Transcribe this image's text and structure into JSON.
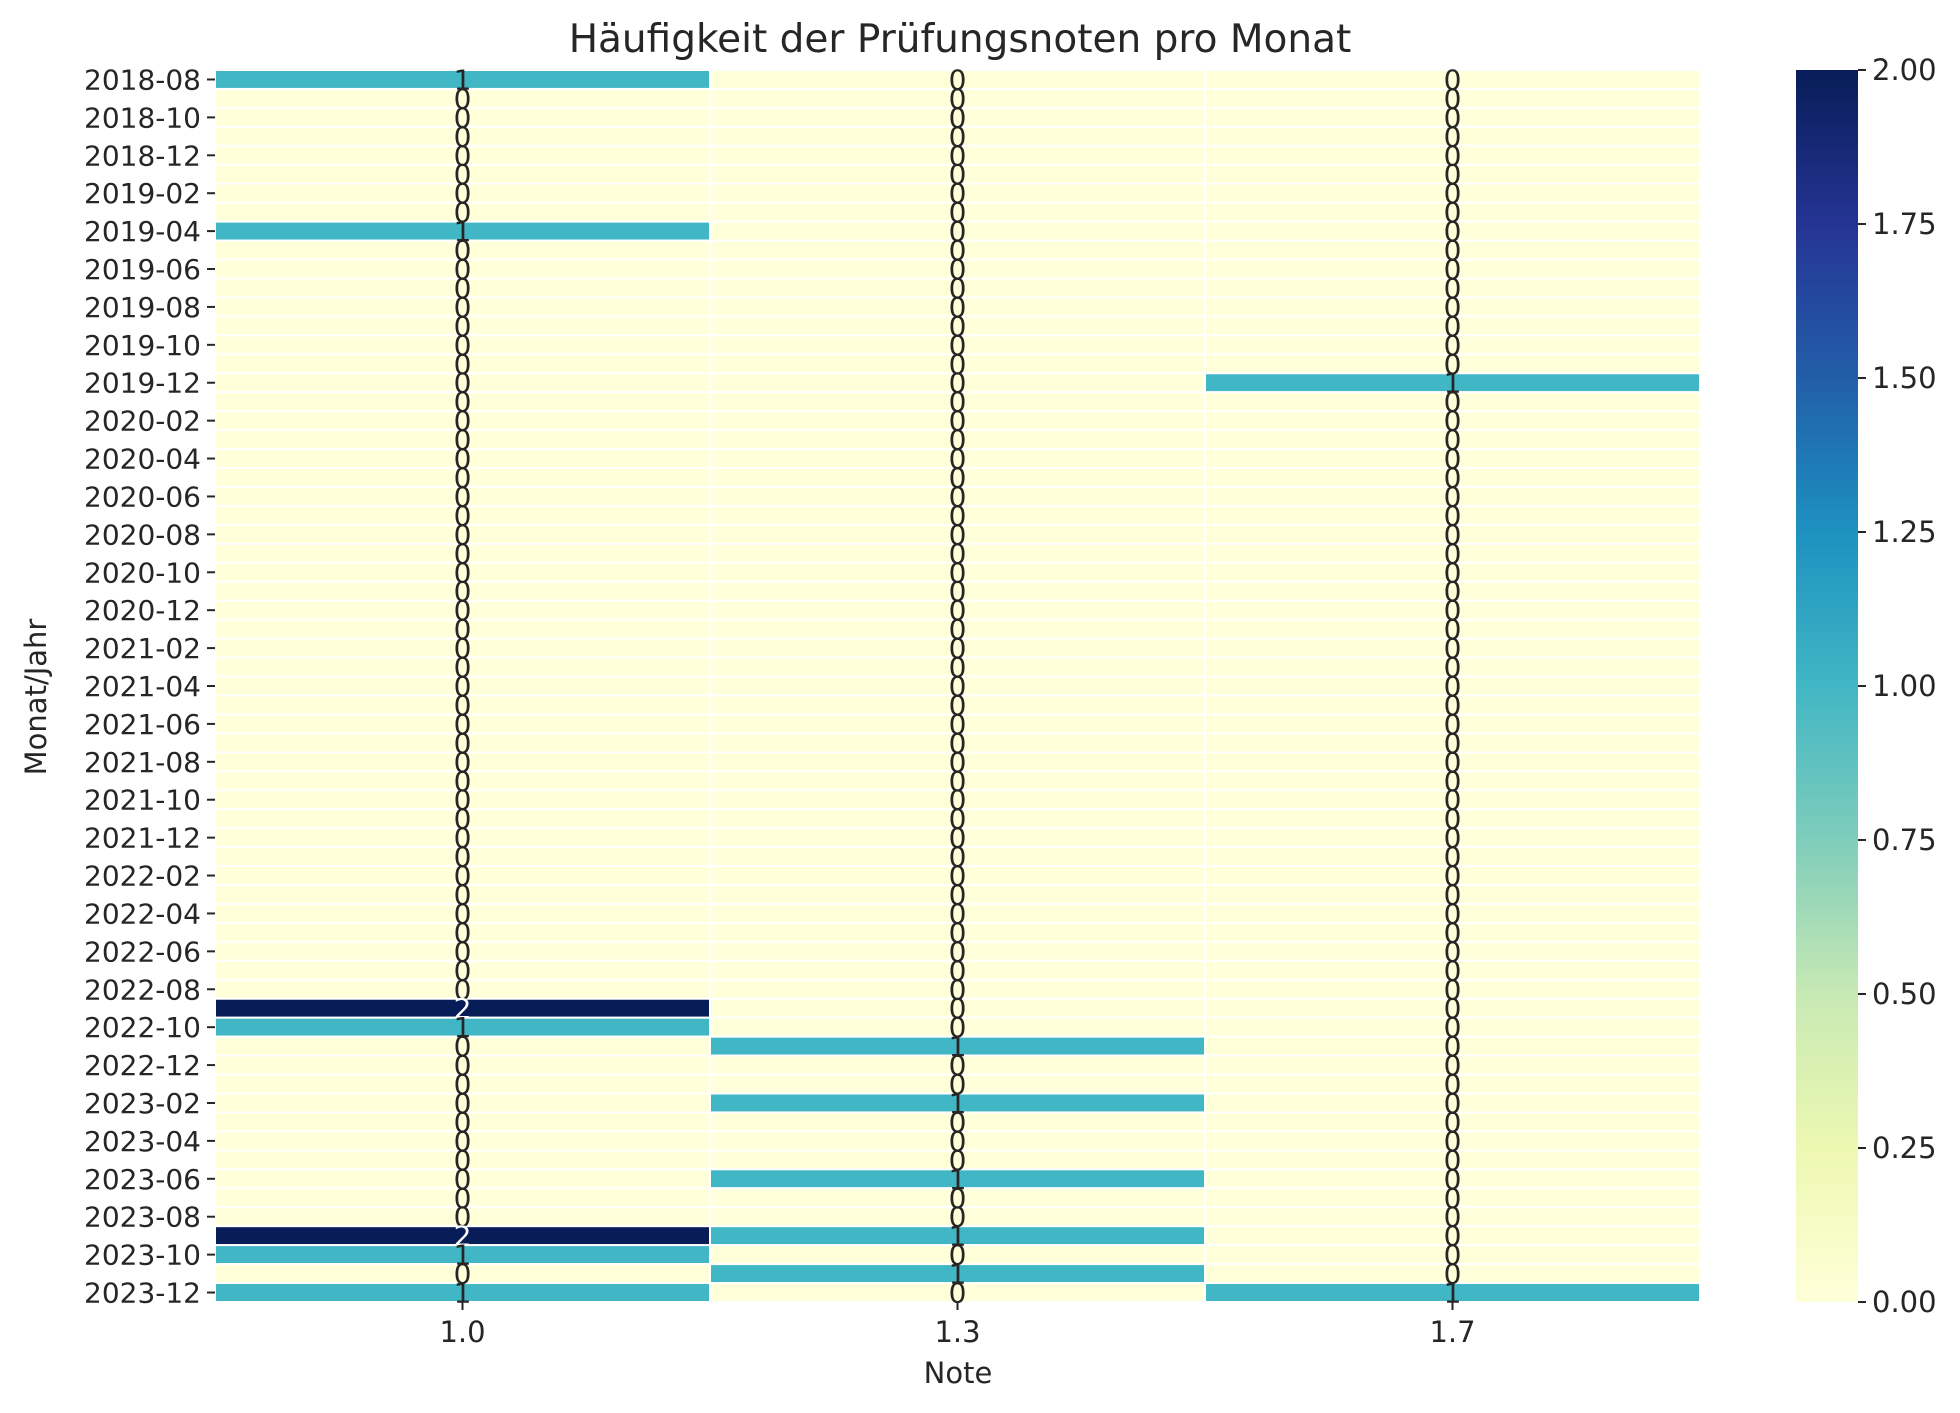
{
  "chart_data": {
    "type": "heatmap",
    "title": "Häufigkeit der Prüfungsnoten pro Monat",
    "xlabel": "Note",
    "ylabel": "Monat/Jahr",
    "x_categories": [
      "1.0",
      "1.3",
      "1.7"
    ],
    "y_categories": [
      "2018-08",
      "2018-09",
      "2018-10",
      "2018-11",
      "2018-12",
      "2019-01",
      "2019-02",
      "2019-03",
      "2019-04",
      "2019-05",
      "2019-06",
      "2019-07",
      "2019-08",
      "2019-09",
      "2019-10",
      "2019-11",
      "2019-12",
      "2020-01",
      "2020-02",
      "2020-03",
      "2020-04",
      "2020-05",
      "2020-06",
      "2020-07",
      "2020-08",
      "2020-09",
      "2020-10",
      "2020-11",
      "2020-12",
      "2021-01",
      "2021-02",
      "2021-03",
      "2021-04",
      "2021-05",
      "2021-06",
      "2021-07",
      "2021-08",
      "2021-09",
      "2021-10",
      "2021-11",
      "2021-12",
      "2022-01",
      "2022-02",
      "2022-03",
      "2022-04",
      "2022-05",
      "2022-06",
      "2022-07",
      "2022-08",
      "2022-09",
      "2022-10",
      "2022-11",
      "2022-12",
      "2023-01",
      "2023-02",
      "2023-03",
      "2023-04",
      "2023-05",
      "2023-06",
      "2023-07",
      "2023-08",
      "2023-09",
      "2023-10",
      "2023-11",
      "2023-12"
    ],
    "y_tick_labels": [
      "2018-08",
      "2018-10",
      "2018-12",
      "2019-02",
      "2019-04",
      "2019-06",
      "2019-08",
      "2019-10",
      "2019-12",
      "2020-02",
      "2020-04",
      "2020-06",
      "2020-08",
      "2020-10",
      "2020-12",
      "2021-02",
      "2021-04",
      "2021-06",
      "2021-08",
      "2021-10",
      "2021-12",
      "2022-02",
      "2022-04",
      "2022-06",
      "2022-08",
      "2022-10",
      "2022-12",
      "2023-02",
      "2023-04",
      "2023-06",
      "2023-08",
      "2023-10",
      "2023-12"
    ],
    "values": [
      [
        1,
        0,
        0
      ],
      [
        0,
        0,
        0
      ],
      [
        0,
        0,
        0
      ],
      [
        0,
        0,
        0
      ],
      [
        0,
        0,
        0
      ],
      [
        0,
        0,
        0
      ],
      [
        0,
        0,
        0
      ],
      [
        0,
        0,
        0
      ],
      [
        1,
        0,
        0
      ],
      [
        0,
        0,
        0
      ],
      [
        0,
        0,
        0
      ],
      [
        0,
        0,
        0
      ],
      [
        0,
        0,
        0
      ],
      [
        0,
        0,
        0
      ],
      [
        0,
        0,
        0
      ],
      [
        0,
        0,
        0
      ],
      [
        0,
        0,
        1
      ],
      [
        0,
        0,
        0
      ],
      [
        0,
        0,
        0
      ],
      [
        0,
        0,
        0
      ],
      [
        0,
        0,
        0
      ],
      [
        0,
        0,
        0
      ],
      [
        0,
        0,
        0
      ],
      [
        0,
        0,
        0
      ],
      [
        0,
        0,
        0
      ],
      [
        0,
        0,
        0
      ],
      [
        0,
        0,
        0
      ],
      [
        0,
        0,
        0
      ],
      [
        0,
        0,
        0
      ],
      [
        0,
        0,
        0
      ],
      [
        0,
        0,
        0
      ],
      [
        0,
        0,
        0
      ],
      [
        0,
        0,
        0
      ],
      [
        0,
        0,
        0
      ],
      [
        0,
        0,
        0
      ],
      [
        0,
        0,
        0
      ],
      [
        0,
        0,
        0
      ],
      [
        0,
        0,
        0
      ],
      [
        0,
        0,
        0
      ],
      [
        0,
        0,
        0
      ],
      [
        0,
        0,
        0
      ],
      [
        0,
        0,
        0
      ],
      [
        0,
        0,
        0
      ],
      [
        0,
        0,
        0
      ],
      [
        0,
        0,
        0
      ],
      [
        0,
        0,
        0
      ],
      [
        0,
        0,
        0
      ],
      [
        0,
        0,
        0
      ],
      [
        0,
        0,
        0
      ],
      [
        2,
        0,
        0
      ],
      [
        1,
        0,
        0
      ],
      [
        0,
        1,
        0
      ],
      [
        0,
        0,
        0
      ],
      [
        0,
        0,
        0
      ],
      [
        0,
        1,
        0
      ],
      [
        0,
        0,
        0
      ],
      [
        0,
        0,
        0
      ],
      [
        0,
        0,
        0
      ],
      [
        0,
        1,
        0
      ],
      [
        0,
        0,
        0
      ],
      [
        0,
        0,
        0
      ],
      [
        2,
        1,
        0
      ],
      [
        1,
        0,
        0
      ],
      [
        0,
        1,
        0
      ],
      [
        1,
        0,
        1
      ]
    ],
    "colorbar": {
      "min": 0,
      "max": 2,
      "ticks": [
        "0.00",
        "0.25",
        "0.50",
        "0.75",
        "1.00",
        "1.25",
        "1.50",
        "1.75",
        "2.00"
      ],
      "colormap": "YlGnBu",
      "stops": [
        "#ffffd9",
        "#edf8b1",
        "#c7e9b4",
        "#7fcdbb",
        "#41b6c4",
        "#1d91c0",
        "#225ea8",
        "#253494",
        "#081d58"
      ]
    },
    "grid": false,
    "legend": "colorbar-right"
  }
}
